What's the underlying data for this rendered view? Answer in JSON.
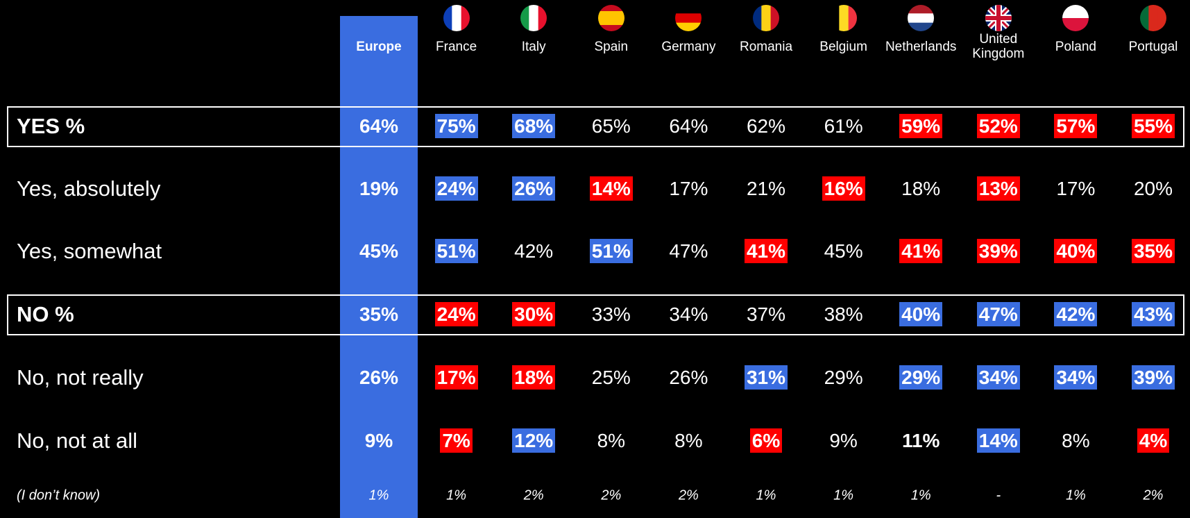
{
  "table": {
    "colors": {
      "blue": "#3a6de0",
      "red": "#ff0000"
    },
    "columns": [
      {
        "name": "Europe",
        "highlight": "blue"
      },
      {
        "name": "France",
        "flag": "fr"
      },
      {
        "name": "Italy",
        "flag": "it"
      },
      {
        "name": "Spain",
        "flag": "es"
      },
      {
        "name": "Germany",
        "flag": "de"
      },
      {
        "name": "Romania",
        "flag": "ro"
      },
      {
        "name": "Belgium",
        "flag": "be"
      },
      {
        "name": "Netherlands",
        "flag": "nl"
      },
      {
        "name": "United Kingdom",
        "flag": "gb"
      },
      {
        "name": "Poland",
        "flag": "pl"
      },
      {
        "name": "Portugal",
        "flag": "pt"
      }
    ],
    "rows": [
      {
        "label": "YES %",
        "bold": true,
        "boxed": true,
        "cells": [
          {
            "text": "64%"
          },
          {
            "text": "75%",
            "highlight": "blue"
          },
          {
            "text": "68%",
            "highlight": "blue"
          },
          {
            "text": "65%"
          },
          {
            "text": "64%"
          },
          {
            "text": "62%"
          },
          {
            "text": "61%"
          },
          {
            "text": "59%",
            "highlight": "red"
          },
          {
            "text": "52%",
            "highlight": "red"
          },
          {
            "text": "57%",
            "highlight": "red"
          },
          {
            "text": "55%",
            "highlight": "red"
          }
        ]
      },
      {
        "label": "Yes, absolutely",
        "cells": [
          {
            "text": "19%"
          },
          {
            "text": "24%",
            "highlight": "blue"
          },
          {
            "text": "26%",
            "highlight": "blue"
          },
          {
            "text": "14%",
            "highlight": "red"
          },
          {
            "text": "17%"
          },
          {
            "text": "21%"
          },
          {
            "text": "16%",
            "highlight": "red"
          },
          {
            "text": "18%"
          },
          {
            "text": "13%",
            "highlight": "red"
          },
          {
            "text": "17%"
          },
          {
            "text": "20%"
          }
        ]
      },
      {
        "label": "Yes, somewhat",
        "cells": [
          {
            "text": "45%"
          },
          {
            "text": "51%",
            "highlight": "blue"
          },
          {
            "text": "42%"
          },
          {
            "text": "51%",
            "highlight": "blue"
          },
          {
            "text": "47%"
          },
          {
            "text": "41%",
            "highlight": "red"
          },
          {
            "text": "45%"
          },
          {
            "text": "41%",
            "highlight": "red"
          },
          {
            "text": "39%",
            "highlight": "red"
          },
          {
            "text": "40%",
            "highlight": "red"
          },
          {
            "text": "35%",
            "highlight": "red"
          }
        ]
      },
      {
        "label": "NO %",
        "bold": true,
        "boxed": true,
        "cells": [
          {
            "text": "35%"
          },
          {
            "text": "24%",
            "highlight": "red"
          },
          {
            "text": "30%",
            "highlight": "red"
          },
          {
            "text": "33%"
          },
          {
            "text": "34%"
          },
          {
            "text": "37%"
          },
          {
            "text": "38%"
          },
          {
            "text": "40%",
            "highlight": "blue"
          },
          {
            "text": "47%",
            "highlight": "blue"
          },
          {
            "text": "42%",
            "highlight": "blue"
          },
          {
            "text": "43%",
            "highlight": "blue"
          }
        ]
      },
      {
        "label": "No, not really",
        "cells": [
          {
            "text": "26%"
          },
          {
            "text": "17%",
            "highlight": "red"
          },
          {
            "text": "18%",
            "highlight": "red"
          },
          {
            "text": "25%"
          },
          {
            "text": "26%"
          },
          {
            "text": "31%",
            "highlight": "blue"
          },
          {
            "text": "29%"
          },
          {
            "text": "29%",
            "highlight": "blue"
          },
          {
            "text": "34%",
            "highlight": "blue"
          },
          {
            "text": "34%",
            "highlight": "blue"
          },
          {
            "text": "39%",
            "highlight": "blue"
          }
        ]
      },
      {
        "label": "No, not at all",
        "cells": [
          {
            "text": "9%"
          },
          {
            "text": "7%",
            "highlight": "red"
          },
          {
            "text": "12%",
            "highlight": "blue"
          },
          {
            "text": "8%"
          },
          {
            "text": "8%"
          },
          {
            "text": "6%",
            "highlight": "red"
          },
          {
            "text": "9%"
          },
          {
            "text": "11%",
            "bold": true
          },
          {
            "text": "14%",
            "highlight": "blue"
          },
          {
            "text": "8%"
          },
          {
            "text": "4%",
            "highlight": "red"
          }
        ]
      },
      {
        "label": "(I don’t know)",
        "italic": true,
        "cells": [
          {
            "text": "1%"
          },
          {
            "text": "1%"
          },
          {
            "text": "2%"
          },
          {
            "text": "2%"
          },
          {
            "text": "2%"
          },
          {
            "text": "1%"
          },
          {
            "text": "1%"
          },
          {
            "text": "1%"
          },
          {
            "text": "-"
          },
          {
            "text": "1%"
          },
          {
            "text": "2%"
          }
        ]
      }
    ]
  }
}
